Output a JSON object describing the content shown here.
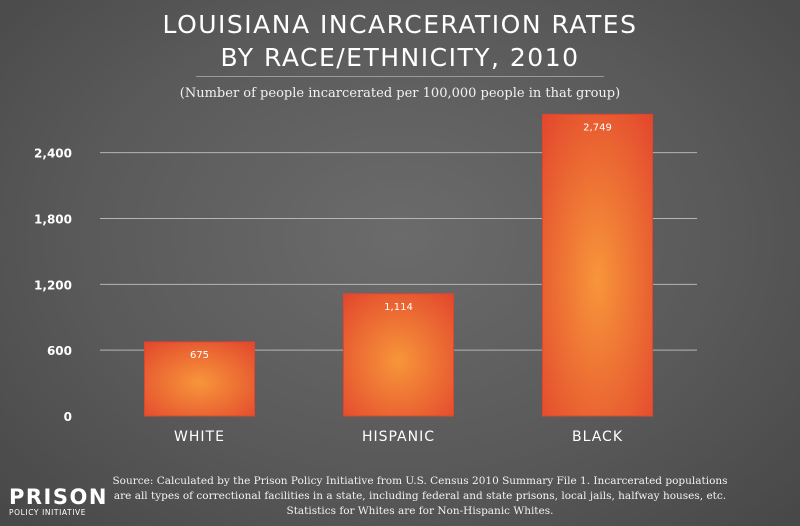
{
  "chart_data": {
    "type": "bar",
    "title_lines": [
      "LOUISIANA INCARCERATION RATES",
      "BY RACE/ETHNICITY, 2010"
    ],
    "subtitle": "(Number of people incarcerated per 100,000 people in that group)",
    "categories": [
      "WHITE",
      "HISPANIC",
      "BLACK"
    ],
    "values": [
      675,
      1114,
      2749
    ],
    "value_labels": [
      "675",
      "1,114",
      "2,749"
    ],
    "yticks": [
      0,
      600,
      1200,
      1800,
      2400
    ],
    "ytick_labels": [
      "0",
      "600",
      "1,200",
      "1,800",
      "2,400"
    ],
    "ylim": [
      0,
      2880
    ],
    "grid": true,
    "xlabel": "",
    "ylabel": ""
  },
  "colors": {
    "bar_center": "#f7963a",
    "bar_edge": "#e2452d",
    "grid": "#b5b5b5",
    "text": "#ffffff"
  },
  "source_note": "Source: Calculated by the Prison Policy Initiative from U.S. Census 2010 Summary File 1. Incarcerated populations are all types of correctional facilities in a state, including federal and state prisons, local jails, halfway houses, etc. Statistics for Whites are for Non-Hispanic Whites.",
  "logo": {
    "name": "PRISON",
    "sub": "POLICY INITIATIVE"
  }
}
